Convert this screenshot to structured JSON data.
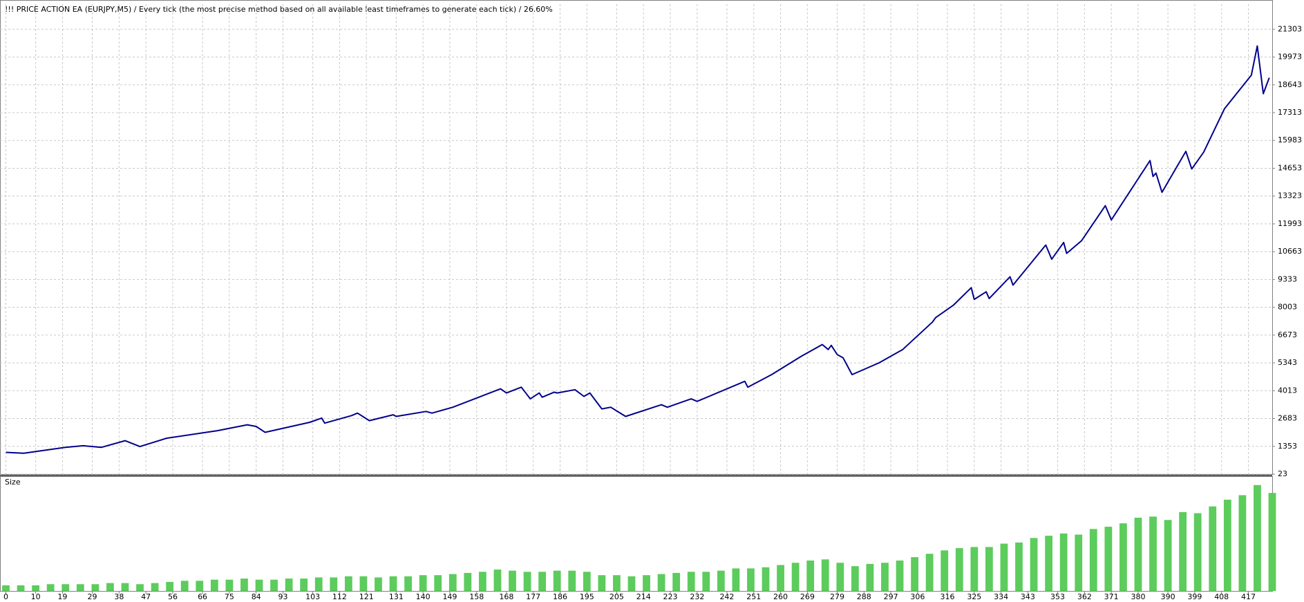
{
  "chart_data": [
    {
      "type": "line",
      "title": "!!! PRICE ACTION EA (EURJPY,M5) / Every tick (the most precise method based on all available least timeframes to generate each tick) / 26.60%",
      "color": "#00008b",
      "x": [
        0,
        6,
        20,
        26,
        32,
        40,
        45,
        54,
        71,
        81,
        84,
        87,
        102,
        106,
        107,
        116,
        118,
        122,
        130,
        131,
        141,
        143,
        150,
        166,
        168,
        173,
        176,
        179,
        180,
        184,
        185,
        191,
        194,
        196,
        200,
        203,
        208,
        220,
        222,
        230,
        232,
        248,
        249,
        257,
        267,
        274,
        276,
        277,
        279,
        281,
        284,
        293,
        301,
        311,
        312,
        318,
        324,
        325,
        329,
        330,
        337,
        338,
        349,
        351,
        355,
        356,
        361,
        369,
        371,
        384,
        385,
        386,
        388,
        396,
        398,
        402,
        409,
        418,
        420,
        422,
        424
      ],
      "values": [
        1063,
        1023,
        1303,
        1383,
        1303,
        1623,
        1343,
        1743,
        2103,
        2383,
        2303,
        2023,
        2503,
        2703,
        2463,
        2823,
        2943,
        2583,
        2863,
        2783,
        3023,
        2943,
        3223,
        4103,
        3903,
        4183,
        3623,
        3903,
        3703,
        3943,
        3903,
        4063,
        3743,
        3903,
        3143,
        3223,
        2783,
        3343,
        3223,
        3623,
        3503,
        4463,
        4183,
        4783,
        5663,
        6223,
        5983,
        6183,
        5743,
        5583,
        4783,
        5343,
        5983,
        7303,
        7503,
        8103,
        8943,
        8383,
        8743,
        8423,
        9463,
        9063,
        10983,
        10303,
        11103,
        10583,
        11183,
        12863,
        12183,
        15023,
        14263,
        14423,
        13503,
        15463,
        14623,
        15423,
        17503,
        19103,
        20503,
        18223,
        18983
      ],
      "xlim": [
        0,
        425
      ],
      "xticks": [
        0,
        10,
        19,
        29,
        38,
        47,
        56,
        66,
        75,
        84,
        93,
        103,
        112,
        121,
        131,
        140,
        149,
        158,
        168,
        177,
        186,
        195,
        205,
        214,
        223,
        232,
        242,
        251,
        260,
        269,
        279,
        288,
        297,
        306,
        316,
        325,
        334,
        343,
        353,
        362,
        371,
        380,
        390,
        399,
        408,
        417
      ],
      "ylim": [
        23,
        22503
      ],
      "yticks": [
        23,
        1353,
        2683,
        4013,
        5343,
        6673,
        8003,
        9333,
        10663,
        11993,
        13323,
        14653,
        15983,
        17313,
        18643,
        19973,
        21303
      ],
      "grid": true
    },
    {
      "type": "bar",
      "title": "Size",
      "color": "#5ccc5c",
      "x": [
        0,
        5,
        10,
        15,
        20,
        25,
        30,
        35,
        40,
        45,
        50,
        55,
        60,
        65,
        70,
        75,
        80,
        85,
        90,
        95,
        100,
        105,
        110,
        115,
        120,
        125,
        130,
        135,
        140,
        145,
        150,
        155,
        160,
        165,
        170,
        175,
        180,
        185,
        190,
        195,
        200,
        205,
        210,
        215,
        220,
        225,
        230,
        235,
        240,
        245,
        250,
        255,
        260,
        265,
        270,
        275,
        280,
        285,
        290,
        295,
        300,
        305,
        310,
        315,
        320,
        325,
        330,
        335,
        340,
        345,
        350,
        355,
        360,
        365,
        370,
        375,
        380,
        385,
        390,
        395,
        400,
        405,
        410,
        415,
        420,
        425
      ],
      "values": [
        5,
        5,
        5,
        6,
        6,
        6,
        6,
        7,
        7,
        6,
        7,
        8,
        9,
        9,
        10,
        10,
        11,
        10,
        10,
        11,
        11,
        12,
        12,
        13,
        13,
        12,
        13,
        13,
        14,
        14,
        15,
        16,
        17,
        19,
        18,
        17,
        17,
        18,
        18,
        17,
        14,
        14,
        13,
        14,
        15,
        16,
        17,
        17,
        18,
        20,
        20,
        21,
        23,
        25,
        27,
        28,
        25,
        22,
        24,
        25,
        27,
        30,
        33,
        36,
        38,
        39,
        39,
        42,
        43,
        47,
        49,
        51,
        50,
        55,
        57,
        60,
        65,
        66,
        63,
        70,
        69,
        75,
        81,
        85,
        94,
        87
      ],
      "xlim": [
        0,
        425
      ],
      "ylim": [
        0,
        100
      ]
    }
  ]
}
